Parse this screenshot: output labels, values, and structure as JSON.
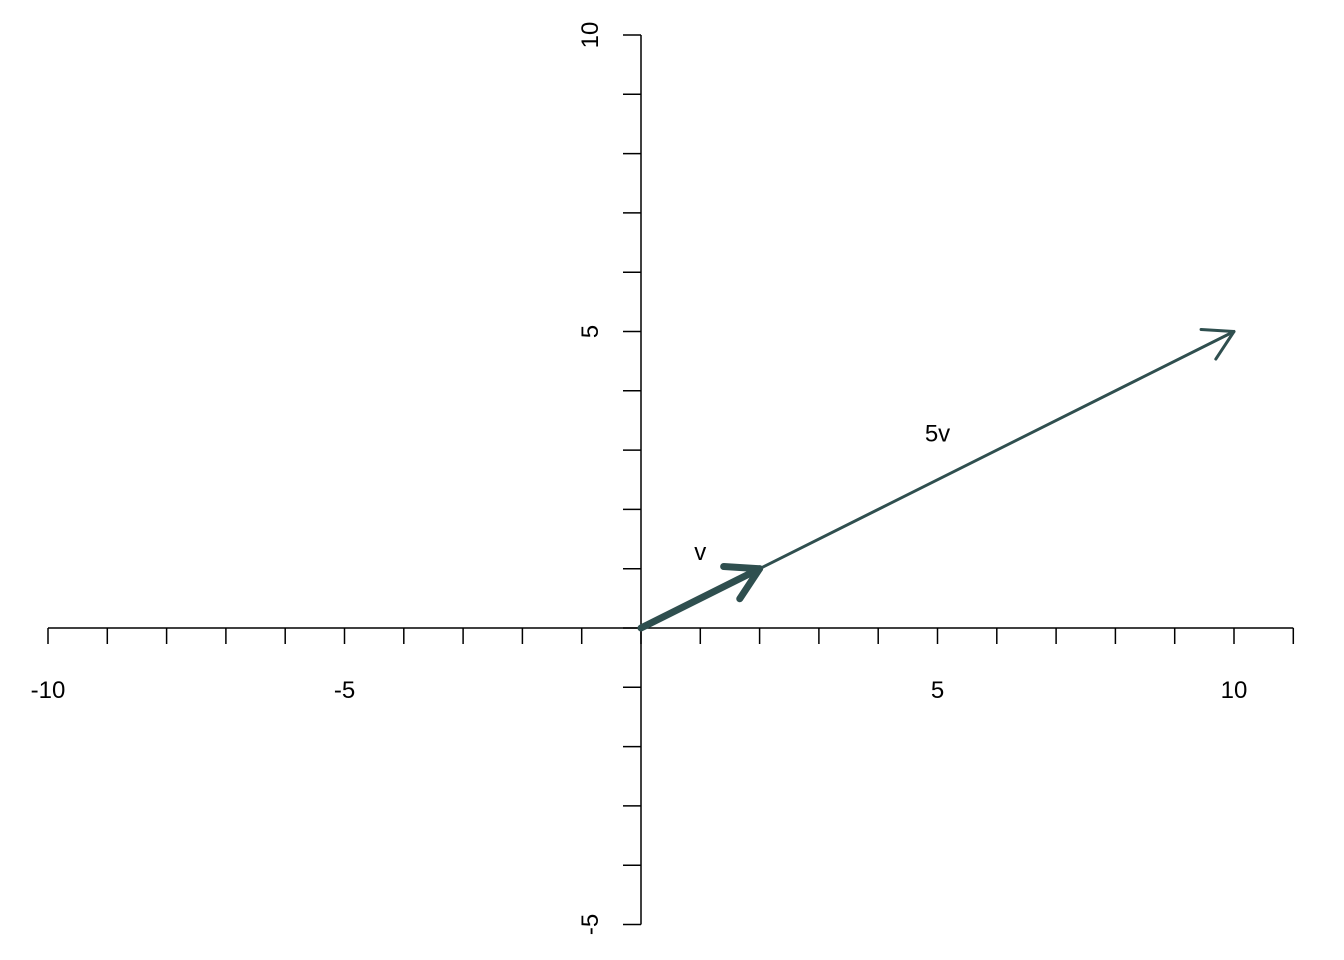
{
  "chart_data": {
    "type": "vector",
    "xlim": [
      -10,
      11
    ],
    "ylim": [
      -5,
      10
    ],
    "x_tick_labels": [
      "-10",
      "-5",
      "5",
      "10"
    ],
    "y_tick_labels": [
      "-5",
      "5",
      "10"
    ],
    "grid": false,
    "color": "#2F4F4F",
    "vectors": [
      {
        "name": "v",
        "from": [
          0,
          0
        ],
        "to": [
          2,
          1
        ],
        "style": "thick"
      },
      {
        "name": "5v",
        "from": [
          0,
          0
        ],
        "to": [
          10,
          5
        ],
        "style": "thin"
      }
    ],
    "annotations": [
      {
        "text": "v",
        "x": 1,
        "y": 1.3
      },
      {
        "text": "5v",
        "x": 5,
        "y": 3.3
      }
    ]
  }
}
